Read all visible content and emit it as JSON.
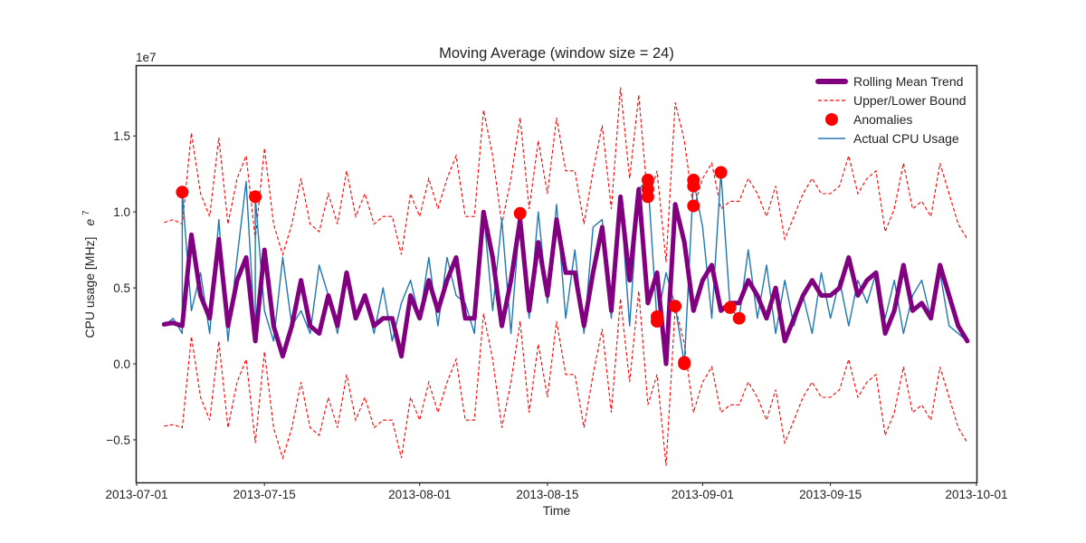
{
  "chart_data": {
    "type": "line",
    "title": "Moving Average (window size = 24)",
    "xlabel": "Time",
    "ylabel": "CPU usage [MHz]",
    "ylabel_suffix": "e",
    "ylabel_superscript": "7",
    "y_offset_text": "1e7",
    "xlim": [
      "2013-07-01",
      "2013-10-01"
    ],
    "ylim": [
      -0.78,
      1.96
    ],
    "x_ticks": [
      "2013-07-01",
      "2013-07-15",
      "2013-08-01",
      "2013-08-15",
      "2013-09-01",
      "2013-09-15",
      "2013-10-01"
    ],
    "y_ticks": [
      -0.5,
      0.0,
      0.5,
      1.0,
      1.5
    ],
    "y_tick_labels": [
      "−0.5",
      "0.0",
      "0.5",
      "1.0",
      "1.5"
    ],
    "grid": false,
    "legend_position": "top-right",
    "colors": {
      "rolling": "#800080",
      "bound": "#ff0000",
      "anomaly": "#ff0000",
      "actual": "#1f77b4"
    },
    "series": [
      {
        "name": "Rolling Mean Trend",
        "style": "thick-line",
        "x": [
          "2013-07-04",
          "2013-07-05",
          "2013-07-06",
          "2013-07-07",
          "2013-07-08",
          "2013-07-09",
          "2013-07-10",
          "2013-07-11",
          "2013-07-12",
          "2013-07-13",
          "2013-07-14",
          "2013-07-15",
          "2013-07-16",
          "2013-07-17",
          "2013-07-18",
          "2013-07-19",
          "2013-07-20",
          "2013-07-21",
          "2013-07-22",
          "2013-07-23",
          "2013-07-24",
          "2013-07-25",
          "2013-07-26",
          "2013-07-27",
          "2013-07-28",
          "2013-07-29",
          "2013-07-30",
          "2013-07-31",
          "2013-08-01",
          "2013-08-02",
          "2013-08-03",
          "2013-08-04",
          "2013-08-05",
          "2013-08-06",
          "2013-08-07",
          "2013-08-08",
          "2013-08-09",
          "2013-08-10",
          "2013-08-11",
          "2013-08-12",
          "2013-08-13",
          "2013-08-14",
          "2013-08-15",
          "2013-08-16",
          "2013-08-17",
          "2013-08-18",
          "2013-08-19",
          "2013-08-20",
          "2013-08-21",
          "2013-08-22",
          "2013-08-23",
          "2013-08-24",
          "2013-08-25",
          "2013-08-26",
          "2013-08-27",
          "2013-08-28",
          "2013-08-29",
          "2013-08-30",
          "2013-08-31",
          "2013-09-01",
          "2013-09-02",
          "2013-09-03",
          "2013-09-04",
          "2013-09-05",
          "2013-09-06",
          "2013-09-07",
          "2013-09-08",
          "2013-09-09",
          "2013-09-10",
          "2013-09-11",
          "2013-09-12",
          "2013-09-13",
          "2013-09-14",
          "2013-09-15",
          "2013-09-16",
          "2013-09-17",
          "2013-09-18",
          "2013-09-19",
          "2013-09-20",
          "2013-09-21",
          "2013-09-22",
          "2013-09-23",
          "2013-09-24",
          "2013-09-25",
          "2013-09-26",
          "2013-09-27",
          "2013-09-28",
          "2013-09-29",
          "2013-09-30"
        ],
        "y": [
          0.26,
          0.27,
          0.25,
          0.85,
          0.45,
          0.3,
          0.82,
          0.25,
          0.55,
          0.7,
          0.15,
          0.75,
          0.25,
          0.05,
          0.25,
          0.55,
          0.25,
          0.2,
          0.45,
          0.25,
          0.6,
          0.3,
          0.45,
          0.25,
          0.3,
          0.3,
          0.05,
          0.45,
          0.3,
          0.55,
          0.35,
          0.55,
          0.7,
          0.3,
          0.3,
          1.0,
          0.7,
          0.25,
          0.55,
          0.95,
          0.35,
          0.8,
          0.45,
          0.95,
          0.6,
          0.6,
          0.25,
          0.6,
          0.9,
          0.35,
          1.1,
          0.55,
          1.15,
          0.4,
          0.6,
          0.0,
          1.05,
          0.8,
          0.35,
          0.55,
          0.65,
          0.35,
          0.4,
          0.4,
          0.55,
          0.45,
          0.3,
          0.5,
          0.15,
          0.3,
          0.45,
          0.55,
          0.45,
          0.45,
          0.5,
          0.7,
          0.45,
          0.55,
          0.6,
          0.2,
          0.35,
          0.65,
          0.35,
          0.4,
          0.3,
          0.65,
          0.45,
          0.25,
          0.15
        ]
      },
      {
        "name": "Upper/Lower Bound",
        "style": "dashed",
        "x": [
          "2013-07-04",
          "2013-07-05",
          "2013-07-06",
          "2013-07-07",
          "2013-07-08",
          "2013-07-09",
          "2013-07-10",
          "2013-07-11",
          "2013-07-12",
          "2013-07-13",
          "2013-07-14",
          "2013-07-15",
          "2013-07-16",
          "2013-07-17",
          "2013-07-18",
          "2013-07-19",
          "2013-07-20",
          "2013-07-21",
          "2013-07-22",
          "2013-07-23",
          "2013-07-24",
          "2013-07-25",
          "2013-07-26",
          "2013-07-27",
          "2013-07-28",
          "2013-07-29",
          "2013-07-30",
          "2013-07-31",
          "2013-08-01",
          "2013-08-02",
          "2013-08-03",
          "2013-08-04",
          "2013-08-05",
          "2013-08-06",
          "2013-08-07",
          "2013-08-08",
          "2013-08-09",
          "2013-08-10",
          "2013-08-11",
          "2013-08-12",
          "2013-08-13",
          "2013-08-14",
          "2013-08-15",
          "2013-08-16",
          "2013-08-17",
          "2013-08-18",
          "2013-08-19",
          "2013-08-20",
          "2013-08-21",
          "2013-08-22",
          "2013-08-23",
          "2013-08-24",
          "2013-08-25",
          "2013-08-26",
          "2013-08-27",
          "2013-08-28",
          "2013-08-29",
          "2013-08-30",
          "2013-08-31",
          "2013-09-01",
          "2013-09-02",
          "2013-09-03",
          "2013-09-04",
          "2013-09-05",
          "2013-09-06",
          "2013-09-07",
          "2013-09-08",
          "2013-09-09",
          "2013-09-10",
          "2013-09-11",
          "2013-09-12",
          "2013-09-13",
          "2013-09-14",
          "2013-09-15",
          "2013-09-16",
          "2013-09-17",
          "2013-09-18",
          "2013-09-19",
          "2013-09-20",
          "2013-09-21",
          "2013-09-22",
          "2013-09-23",
          "2013-09-24",
          "2013-09-25",
          "2013-09-26",
          "2013-09-27",
          "2013-09-28",
          "2013-09-29",
          "2013-09-30"
        ],
        "y_upper": [
          0.93,
          0.95,
          0.92,
          1.52,
          1.12,
          0.97,
          1.49,
          0.92,
          1.22,
          1.37,
          0.82,
          1.42,
          0.92,
          0.72,
          0.92,
          1.22,
          0.92,
          0.87,
          1.12,
          0.92,
          1.27,
          0.97,
          1.12,
          0.92,
          0.97,
          0.97,
          0.72,
          1.12,
          0.97,
          1.22,
          1.02,
          1.22,
          1.37,
          0.97,
          0.97,
          1.67,
          1.37,
          0.92,
          1.22,
          1.62,
          1.02,
          1.47,
          1.12,
          1.62,
          1.27,
          1.27,
          0.92,
          1.27,
          1.57,
          1.02,
          1.82,
          1.22,
          1.77,
          1.07,
          1.27,
          0.67,
          1.72,
          1.47,
          1.02,
          1.22,
          1.32,
          1.02,
          1.07,
          1.07,
          1.22,
          1.12,
          0.97,
          1.17,
          0.82,
          0.97,
          1.12,
          1.22,
          1.12,
          1.12,
          1.17,
          1.37,
          1.12,
          1.22,
          1.27,
          0.87,
          1.02,
          1.32,
          1.02,
          1.07,
          0.97,
          1.32,
          1.12,
          0.92,
          0.82
        ],
        "y_lower": [
          -0.41,
          -0.4,
          -0.42,
          0.18,
          -0.22,
          -0.37,
          0.15,
          -0.42,
          -0.12,
          0.03,
          -0.52,
          0.08,
          -0.42,
          -0.62,
          -0.42,
          -0.12,
          -0.42,
          -0.47,
          -0.22,
          -0.42,
          -0.07,
          -0.37,
          -0.22,
          -0.42,
          -0.37,
          -0.37,
          -0.62,
          -0.22,
          -0.37,
          -0.12,
          -0.32,
          -0.12,
          0.03,
          -0.37,
          -0.37,
          0.33,
          0.03,
          -0.42,
          -0.12,
          0.28,
          -0.32,
          0.13,
          -0.22,
          0.28,
          -0.07,
          -0.07,
          -0.42,
          -0.07,
          0.23,
          -0.32,
          0.43,
          -0.12,
          0.48,
          -0.27,
          -0.07,
          -0.67,
          0.38,
          0.13,
          -0.32,
          -0.12,
          -0.02,
          -0.32,
          -0.27,
          -0.27,
          -0.12,
          -0.22,
          -0.37,
          -0.17,
          -0.52,
          -0.37,
          -0.22,
          -0.12,
          -0.22,
          -0.22,
          -0.17,
          0.03,
          -0.22,
          -0.12,
          -0.07,
          -0.47,
          -0.32,
          -0.02,
          -0.32,
          -0.27,
          -0.37,
          -0.02,
          -0.22,
          -0.42,
          -0.52
        ]
      },
      {
        "name": "Anomalies",
        "style": "markers",
        "x": [
          "2013-07-06",
          "2013-07-14",
          "2013-08-12",
          "2013-08-26",
          "2013-08-26",
          "2013-08-26",
          "2013-08-27",
          "2013-08-27",
          "2013-08-29",
          "2013-08-30",
          "2013-08-30",
          "2013-08-31",
          "2013-08-31",
          "2013-08-31",
          "2013-09-03",
          "2013-09-04",
          "2013-09-05"
        ],
        "y": [
          1.13,
          1.1,
          0.99,
          1.21,
          1.15,
          1.1,
          0.31,
          0.28,
          0.38,
          0.0,
          0.01,
          1.21,
          1.17,
          1.04,
          1.26,
          0.37,
          0.3
        ]
      },
      {
        "name": "Actual CPU Usage",
        "style": "thin-line",
        "x": [
          "2013-07-04",
          "2013-07-05",
          "2013-07-06",
          "2013-07-06",
          "2013-07-07",
          "2013-07-08",
          "2013-07-09",
          "2013-07-10",
          "2013-07-11",
          "2013-07-12",
          "2013-07-13",
          "2013-07-14",
          "2013-07-14",
          "2013-07-15",
          "2013-07-16",
          "2013-07-17",
          "2013-07-18",
          "2013-07-19",
          "2013-07-20",
          "2013-07-21",
          "2013-07-22",
          "2013-07-23",
          "2013-07-24",
          "2013-07-25",
          "2013-07-26",
          "2013-07-27",
          "2013-07-28",
          "2013-07-29",
          "2013-07-30",
          "2013-07-31",
          "2013-08-01",
          "2013-08-02",
          "2013-08-03",
          "2013-08-04",
          "2013-08-05",
          "2013-08-06",
          "2013-08-07",
          "2013-08-08",
          "2013-08-09",
          "2013-08-10",
          "2013-08-11",
          "2013-08-12",
          "2013-08-13",
          "2013-08-14",
          "2013-08-15",
          "2013-08-16",
          "2013-08-17",
          "2013-08-18",
          "2013-08-19",
          "2013-08-20",
          "2013-08-21",
          "2013-08-22",
          "2013-08-23",
          "2013-08-24",
          "2013-08-25",
          "2013-08-26",
          "2013-08-27",
          "2013-08-28",
          "2013-08-29",
          "2013-08-30",
          "2013-08-31",
          "2013-09-01",
          "2013-09-02",
          "2013-09-03",
          "2013-09-04",
          "2013-09-05",
          "2013-09-06",
          "2013-09-07",
          "2013-09-08",
          "2013-09-09",
          "2013-09-10",
          "2013-09-11",
          "2013-09-12",
          "2013-09-13",
          "2013-09-14",
          "2013-09-15",
          "2013-09-16",
          "2013-09-17",
          "2013-09-18",
          "2013-09-19",
          "2013-09-20",
          "2013-09-21",
          "2013-09-22",
          "2013-09-23",
          "2013-09-24",
          "2013-09-25",
          "2013-09-26",
          "2013-09-27",
          "2013-09-28",
          "2013-09-29",
          "2013-09-30"
        ],
        "y": [
          0.25,
          0.3,
          0.2,
          1.13,
          0.35,
          0.6,
          0.2,
          0.95,
          0.15,
          0.7,
          1.2,
          0.15,
          1.1,
          0.35,
          0.15,
          0.7,
          0.25,
          0.35,
          0.2,
          0.65,
          0.45,
          0.2,
          0.55,
          0.3,
          0.45,
          0.2,
          0.5,
          0.15,
          0.4,
          0.55,
          0.3,
          0.7,
          0.25,
          0.7,
          0.45,
          0.4,
          0.2,
          1.0,
          0.35,
          0.95,
          0.2,
          0.99,
          0.3,
          1.0,
          0.4,
          1.05,
          0.3,
          0.75,
          0.2,
          0.9,
          0.95,
          0.3,
          1.1,
          0.25,
          1.15,
          1.21,
          0.28,
          0.6,
          0.38,
          0.0,
          1.21,
          0.9,
          0.3,
          1.26,
          0.37,
          0.3,
          0.75,
          0.3,
          0.65,
          0.2,
          0.55,
          0.25,
          0.45,
          0.2,
          0.6,
          0.3,
          0.55,
          0.25,
          0.55,
          0.4,
          0.6,
          0.3,
          0.55,
          0.2,
          0.45,
          0.55,
          0.3,
          0.6,
          0.25,
          0.2,
          0.15
        ]
      }
    ]
  }
}
